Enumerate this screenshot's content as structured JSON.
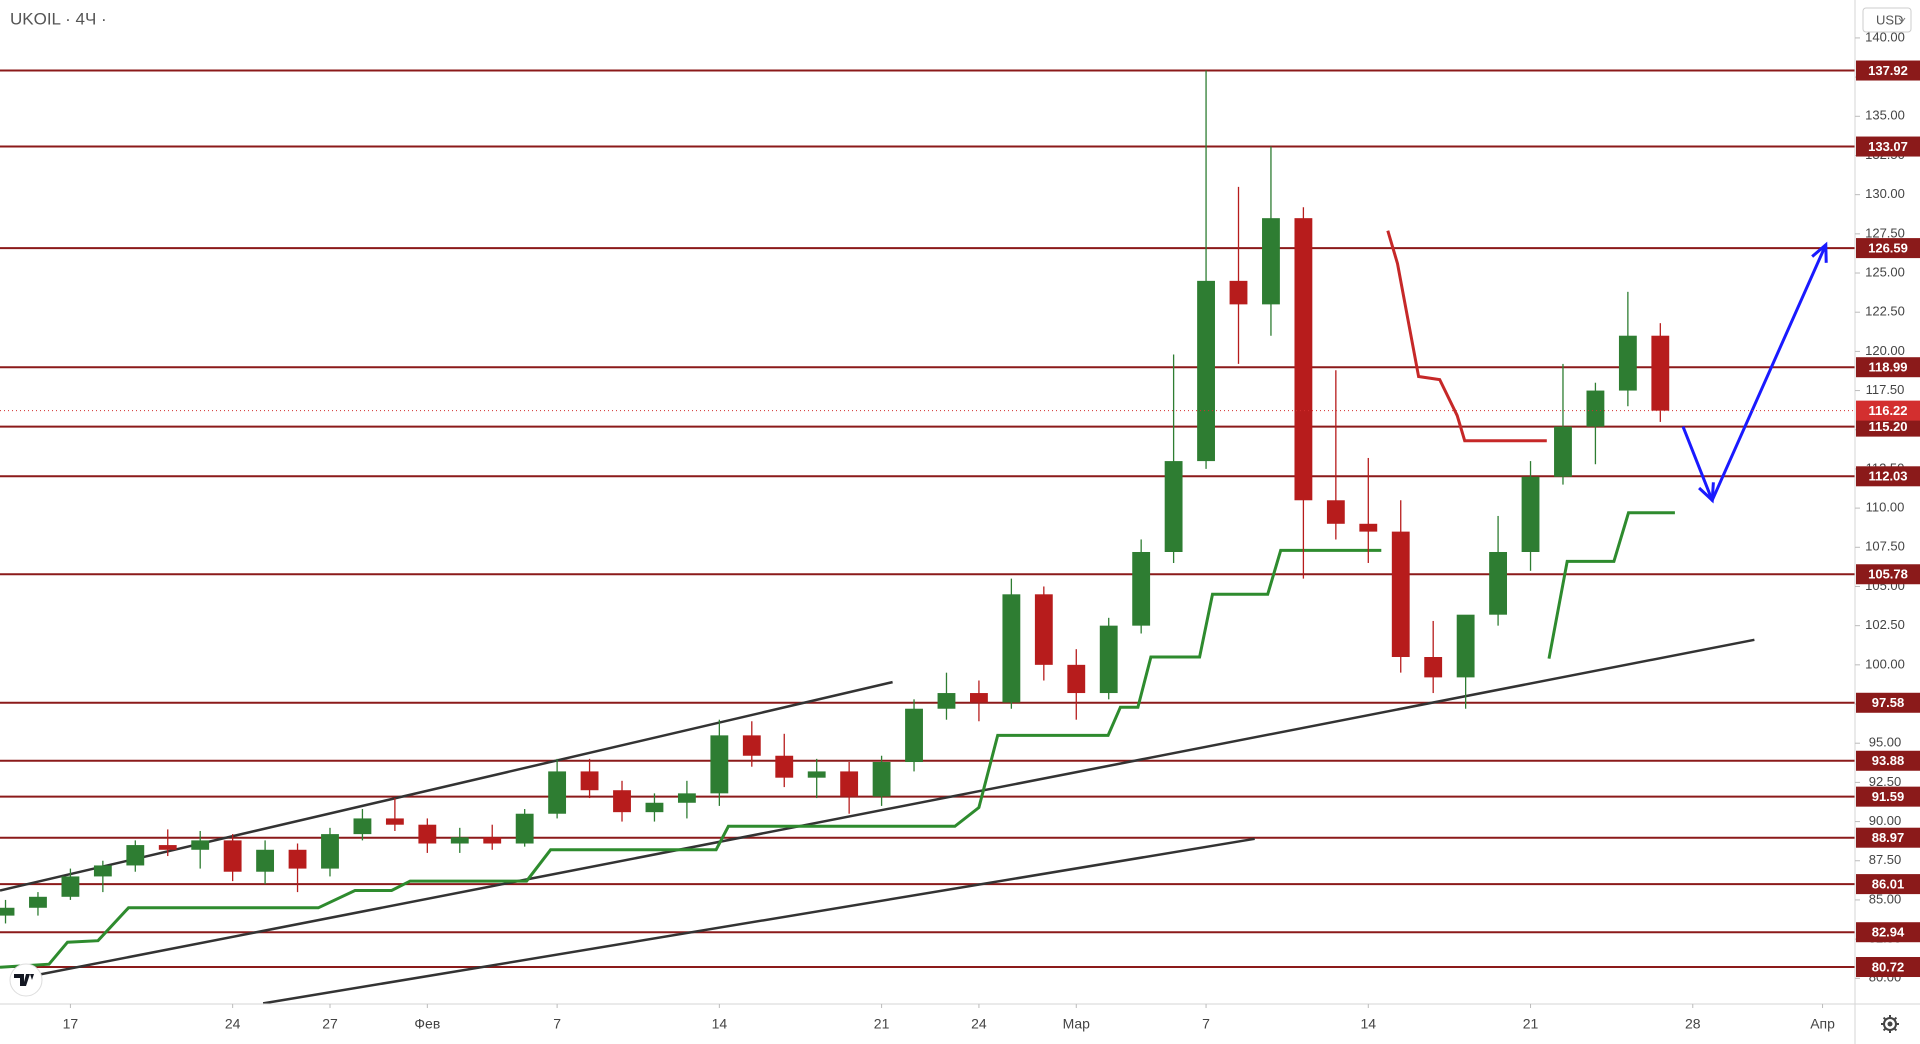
{
  "chart_data": {
    "type": "candlestick",
    "title": "UKOIL · 4Ч ·",
    "currency": "USD",
    "xlim": [
      -2.17,
      55.0
    ],
    "ylim": [
      78.36,
      142.42
    ],
    "xticks": [
      {
        "value": 0,
        "label": "17"
      },
      {
        "value": 5,
        "label": "24"
      },
      {
        "value": 8,
        "label": "27"
      },
      {
        "value": 11,
        "label": "Фев"
      },
      {
        "value": 15,
        "label": "7"
      },
      {
        "value": 20,
        "label": "14"
      },
      {
        "value": 25,
        "label": "21"
      },
      {
        "value": 28,
        "label": "24"
      },
      {
        "value": 31,
        "label": "Мар"
      },
      {
        "value": 35,
        "label": "7"
      },
      {
        "value": 40,
        "label": "14"
      },
      {
        "value": 45,
        "label": "21"
      },
      {
        "value": 50,
        "label": "28"
      },
      {
        "value": 54,
        "label": "Апр"
      }
    ],
    "yticks": [
      {
        "value": 80,
        "label": "80.00"
      },
      {
        "value": 82.5,
        "label": "82.50"
      },
      {
        "value": 85,
        "label": "85.00"
      },
      {
        "value": 87.5,
        "label": "87.50"
      },
      {
        "value": 90,
        "label": "90.00"
      },
      {
        "value": 92.5,
        "label": "92.50"
      },
      {
        "value": 95,
        "label": "95.00"
      },
      {
        "value": 97.5,
        "label": "97.50"
      },
      {
        "value": 100,
        "label": "100.00"
      },
      {
        "value": 102.5,
        "label": "102.50"
      },
      {
        "value": 105,
        "label": "105.00"
      },
      {
        "value": 107.5,
        "label": "107.50"
      },
      {
        "value": 110,
        "label": "110.00"
      },
      {
        "value": 112.5,
        "label": "112.50"
      },
      {
        "value": 115,
        "label": "115.00"
      },
      {
        "value": 117.5,
        "label": "117.50"
      },
      {
        "value": 120,
        "label": "120.00"
      },
      {
        "value": 122.5,
        "label": "122.50"
      },
      {
        "value": 125,
        "label": "125.00"
      },
      {
        "value": 127.5,
        "label": "127.50"
      },
      {
        "value": 130,
        "label": "130.00"
      },
      {
        "value": 132.5,
        "label": "132.50"
      },
      {
        "value": 135,
        "label": "135.00"
      },
      {
        "value": 137.5,
        "label": "137.50"
      },
      {
        "value": 140,
        "label": "140.00"
      }
    ],
    "levels": [
      137.92,
      133.07,
      126.59,
      118.99,
      {
        "value": 115.2,
        "label": "115.20"
      },
      112.03,
      105.78,
      97.58,
      93.88,
      91.59,
      88.97,
      86.01,
      82.94,
      80.72
    ],
    "level_color": "#8b1a1a",
    "last_price": 116.22,
    "last_price_color": "#d32f2f",
    "up_color": "#2e7d32",
    "down_color": "#b71c1c",
    "candles": {
      "x": [
        -2,
        -1,
        0,
        1,
        2,
        3,
        4,
        5,
        6,
        7,
        8,
        9,
        10,
        11,
        12,
        13,
        14,
        15,
        16,
        17,
        18,
        19,
        20,
        21,
        22,
        23,
        24,
        25,
        26,
        27,
        28,
        29,
        30,
        31,
        32,
        33,
        34,
        35,
        36,
        37,
        38,
        39,
        40,
        41,
        42,
        43,
        44,
        45,
        46,
        47,
        48,
        49
      ],
      "open": [
        84.0,
        84.5,
        85.2,
        86.5,
        87.2,
        88.5,
        88.2,
        88.8,
        86.8,
        88.2,
        87.0,
        89.2,
        90.2,
        89.8,
        88.6,
        89.0,
        88.6,
        90.5,
        93.2,
        92.0,
        90.6,
        91.2,
        91.8,
        95.5,
        94.2,
        92.8,
        93.2,
        91.6,
        93.8,
        97.2,
        98.2,
        97.6,
        104.5,
        100.0,
        98.2,
        102.5,
        107.2,
        113.0,
        124.5,
        123.0,
        128.5,
        110.5,
        109.0,
        108.5,
        100.5,
        99.2,
        103.2,
        107.2,
        112.0,
        115.2,
        117.5,
        121.0
      ],
      "high": [
        85.0,
        85.5,
        87.0,
        87.5,
        88.8,
        89.5,
        89.4,
        89.2,
        88.8,
        88.6,
        89.6,
        90.8,
        91.5,
        90.2,
        89.6,
        89.8,
        90.8,
        94.0,
        94.0,
        92.6,
        91.8,
        92.6,
        96.5,
        96.4,
        95.6,
        94.0,
        93.8,
        94.2,
        97.8,
        99.5,
        99.0,
        105.5,
        105.0,
        101.0,
        103.0,
        108.0,
        119.8,
        137.92,
        130.5,
        133.07,
        129.2,
        118.8,
        113.2,
        110.5,
        102.8,
        101.0,
        109.5,
        113.0,
        119.2,
        118.0,
        123.8,
        121.8
      ],
      "low": [
        83.5,
        84.0,
        85.0,
        85.5,
        86.8,
        87.8,
        87.0,
        86.2,
        86.0,
        85.5,
        86.5,
        88.8,
        89.4,
        88.0,
        88.0,
        88.2,
        88.4,
        90.2,
        91.5,
        90.0,
        90.0,
        90.2,
        91.0,
        93.5,
        92.2,
        91.5,
        90.5,
        91.0,
        93.2,
        96.5,
        96.4,
        97.2,
        99.0,
        96.5,
        97.8,
        102.0,
        106.5,
        112.5,
        119.2,
        121.0,
        105.5,
        108.0,
        106.5,
        99.5,
        98.2,
        97.2,
        102.5,
        106.0,
        111.5,
        112.8,
        116.5,
        115.5
      ],
      "close": [
        84.5,
        85.2,
        86.5,
        87.2,
        88.5,
        88.2,
        88.8,
        86.8,
        88.2,
        87.0,
        89.2,
        90.2,
        89.8,
        88.6,
        89.0,
        88.6,
        90.5,
        93.2,
        92.0,
        90.6,
        91.2,
        91.8,
        95.5,
        94.2,
        92.8,
        93.2,
        91.6,
        93.8,
        97.2,
        98.2,
        97.6,
        104.5,
        100.0,
        98.2,
        102.5,
        107.2,
        113.0,
        124.5,
        123.0,
        128.5,
        110.5,
        109.0,
        108.5,
        100.5,
        99.2,
        103.2,
        107.2,
        112.0,
        115.2,
        117.5,
        121.0,
        116.22
      ]
    },
    "lines": [
      {
        "color": "#2e8b2e",
        "x": [
          -2.17,
          -0.66,
          -0.09,
          0.85,
          1.79,
          7.64,
          8.77,
          9.9,
          10.47,
          14.06,
          14.8,
          19.9,
          20.28,
          27.26,
          28.0,
          28.58,
          31.98,
          32.36,
          32.9,
          33.3,
          34.8,
          35.2,
          36.9,
          37.3,
          40.4,
          null,
          45.57,
          46.13,
          47.57,
          48.02,
          49.45
        ],
        "values": [
          80.7,
          80.9,
          82.3,
          82.4,
          84.5,
          84.5,
          85.6,
          85.6,
          86.2,
          86.2,
          88.2,
          88.2,
          89.7,
          89.7,
          90.9,
          95.5,
          95.5,
          97.3,
          97.3,
          100.5,
          100.5,
          104.5,
          104.5,
          107.3,
          107.3,
          null,
          100.4,
          106.6,
          106.6,
          109.7,
          109.7
        ]
      },
      {
        "color": "#c62828",
        "x": [
          40.6,
          40.9,
          41.55,
          42.2,
          42.74,
          42.97,
          45.5
        ],
        "values": [
          127.7,
          125.6,
          118.4,
          118.2,
          115.9,
          114.3,
          114.3
        ]
      }
    ],
    "trendlines": [
      {
        "color": "#333333",
        "x": [
          -2.17,
          25.34
        ],
        "values": [
          85.6,
          98.9
        ]
      },
      {
        "color": "#333333",
        "x": [
          -1.8,
          51.9
        ],
        "values": [
          79.9,
          101.6
        ]
      },
      {
        "color": "#333333",
        "x": [
          5.94,
          36.5
        ],
        "values": [
          78.4,
          88.9
        ]
      }
    ],
    "arrow": {
      "color": "#1a1aff",
      "x": [
        49.7,
        50.6,
        54.1
      ],
      "values": [
        115.2,
        110.5,
        126.8
      ]
    }
  }
}
